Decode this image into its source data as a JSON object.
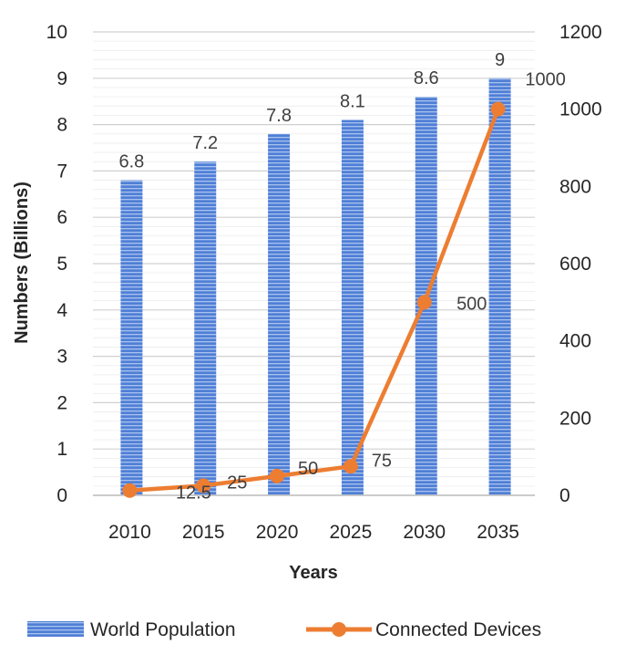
{
  "chart_data": {
    "type": "bar",
    "categories": [
      "2010",
      "2015",
      "2020",
      "2025",
      "2030",
      "2035"
    ],
    "xlabel": "Years",
    "ylabel": "Numbers (Billions)",
    "ylim": [
      0,
      10
    ],
    "yticks": [
      "0",
      "1",
      "2",
      "3",
      "4",
      "5",
      "6",
      "7",
      "8",
      "9",
      "10"
    ],
    "y2lim": [
      0,
      1200
    ],
    "y2ticks": [
      "0",
      "200",
      "400",
      "600",
      "800",
      "1000",
      "1200"
    ],
    "grid": true,
    "legend_position": "bottom",
    "series": [
      {
        "name": "World Population",
        "type": "bar",
        "axis": "left",
        "color": "#4472c4",
        "values": [
          6.8,
          7.2,
          7.8,
          8.1,
          8.6,
          9
        ],
        "labels": [
          "6.8",
          "7.2",
          "7.8",
          "8.1",
          "8.6",
          "9"
        ]
      },
      {
        "name": "Connected Devices",
        "type": "line",
        "axis": "right",
        "color": "#ed7d31",
        "values": [
          12.5,
          25,
          50,
          75,
          500,
          1000
        ],
        "labels": [
          "12.5",
          "25",
          "50",
          "75",
          "500",
          "1000"
        ]
      }
    ]
  }
}
